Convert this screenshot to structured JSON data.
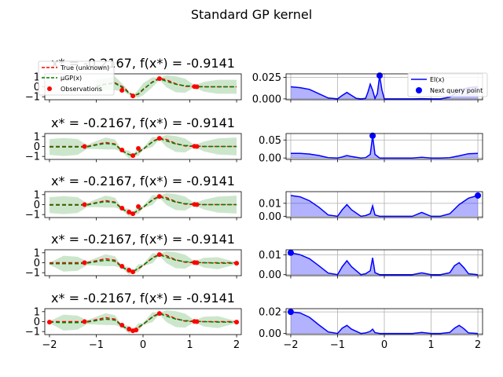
{
  "figure": {
    "title": "Standard GP kernel"
  },
  "chart_data": {
    "type": "line",
    "title": "Standard GP kernel",
    "colors": {
      "true": "#ff0000",
      "mean": "#008000",
      "band": "#008000",
      "observation": "#ff0000",
      "ei": "#0000ff",
      "ei_fill": "#0000ff",
      "next": "#0000ff"
    },
    "left_legend": {
      "entries": [
        "True (unknown)",
        "μGP(x)",
        "Observations"
      ],
      "placement": "upper-left"
    },
    "right_legend": {
      "entries": [
        "EI(x)",
        "Next query point"
      ],
      "placement": "upper-right"
    },
    "x_ticks": [
      -2,
      -1,
      0,
      1,
      2
    ],
    "xlim": [
      -2.1,
      2.1
    ],
    "rows": [
      {
        "title": "x* = -0.2167, f(x*) = -0.9141",
        "gp": {
          "ylim": [
            -1.3,
            1.3
          ],
          "y_ticks": [
            -1,
            0,
            1
          ],
          "x": [
            -1.0,
            -0.8,
            -0.6,
            -0.4,
            -0.3,
            -0.2,
            -0.1,
            0.0,
            0.2,
            0.35,
            0.5,
            0.7,
            0.9,
            1.1,
            1.3,
            1.6,
            2.0
          ],
          "true": [
            0.0,
            0.3,
            0.4,
            -0.1,
            -0.6,
            -0.85,
            -0.75,
            -0.3,
            0.5,
            0.85,
            0.7,
            0.3,
            0.05,
            0.0,
            0.0,
            0.0,
            0.0
          ],
          "mean": [
            0.05,
            0.25,
            0.35,
            -0.2,
            -0.65,
            -0.9,
            -0.7,
            -0.25,
            0.45,
            0.8,
            0.55,
            0.25,
            0.1,
            0.05,
            0.0,
            0.0,
            0.0
          ],
          "std": [
            0.35,
            0.3,
            0.35,
            0.15,
            0.08,
            0.05,
            0.2,
            0.3,
            0.25,
            0.05,
            0.3,
            0.4,
            0.35,
            0.05,
            0.25,
            0.35,
            0.35
          ],
          "observations": {
            "x": [
              -0.45,
              -0.2167,
              0.35,
              1.1,
              1.15
            ],
            "y": [
              -0.35,
              -0.9141,
              0.82,
              0.02,
              0.0
            ]
          }
        },
        "ei": {
          "ylim": [
            -0.001,
            0.029
          ],
          "y_ticks": [
            0.0,
            0.025
          ],
          "y_tick_labels": [
            "0.000",
            "0.025"
          ],
          "x": [
            -2.0,
            -1.8,
            -1.6,
            -1.4,
            -1.2,
            -1.0,
            -0.9,
            -0.8,
            -0.7,
            -0.6,
            -0.5,
            -0.4,
            -0.35,
            -0.3,
            -0.25,
            -0.2,
            -0.15,
            -0.1,
            -0.05,
            0.0,
            0.2,
            0.4,
            0.6,
            0.8,
            1.0,
            1.2,
            1.4,
            1.6,
            1.8,
            2.0
          ],
          "y": [
            0.014,
            0.013,
            0.011,
            0.006,
            0.001,
            0.0,
            0.004,
            0.0075,
            0.004,
            0.0005,
            0.0,
            0.0005,
            0.008,
            0.017,
            0.01,
            0.0005,
            0.006,
            0.027,
            0.01,
            0.0,
            0.0,
            0.0,
            0.0,
            0.0003,
            0.0,
            0.0,
            0.002,
            0.01,
            0.013,
            0.014
          ],
          "next": {
            "x": -0.1,
            "y": 0.027
          }
        }
      },
      {
        "title": "x* = -0.2167, f(x*) = -0.9141",
        "gp": {
          "ylim": [
            -1.3,
            1.3
          ],
          "y_ticks": [
            -1,
            0,
            1
          ],
          "x": [
            -2.0,
            -1.7,
            -1.4,
            -1.2,
            -1.0,
            -0.8,
            -0.6,
            -0.45,
            -0.3,
            -0.2167,
            -0.1,
            0.0,
            0.2,
            0.35,
            0.5,
            0.7,
            0.9,
            1.1,
            1.3,
            1.6,
            2.0
          ],
          "true": [
            0.0,
            0.0,
            0.0,
            0.0,
            0.2,
            0.4,
            0.25,
            -0.4,
            -0.8,
            -0.9141,
            -0.6,
            -0.3,
            0.5,
            0.85,
            0.7,
            0.3,
            0.05,
            0.0,
            0.0,
            0.0,
            0.0
          ],
          "mean": [
            -0.05,
            -0.05,
            -0.05,
            -0.05,
            0.15,
            0.3,
            0.2,
            -0.45,
            -0.8,
            -0.9,
            -0.55,
            -0.25,
            0.45,
            0.8,
            0.55,
            0.25,
            0.1,
            0.05,
            0.0,
            0.0,
            0.0
          ],
          "std": [
            0.4,
            0.45,
            0.4,
            0.1,
            0.2,
            0.3,
            0.25,
            0.05,
            0.2,
            0.05,
            0.2,
            0.05,
            0.25,
            0.05,
            0.3,
            0.4,
            0.35,
            0.05,
            0.25,
            0.4,
            0.45
          ],
          "observations": {
            "x": [
              -1.25,
              -0.45,
              -0.2167,
              -0.1,
              0.35,
              1.1,
              1.15
            ],
            "y": [
              0.0,
              -0.35,
              -0.9141,
              -0.2,
              0.82,
              0.02,
              0.0
            ]
          }
        },
        "ei": {
          "ylim": [
            -0.004,
            0.068
          ],
          "y_ticks": [
            0.0,
            0.05
          ],
          "y_tick_labels": [
            "0.00",
            "0.05"
          ],
          "x": [
            -2.0,
            -1.8,
            -1.6,
            -1.4,
            -1.2,
            -1.0,
            -0.9,
            -0.8,
            -0.7,
            -0.5,
            -0.4,
            -0.3,
            -0.25,
            -0.2,
            -0.1,
            0.0,
            0.4,
            0.6,
            0.8,
            1.0,
            1.2,
            1.4,
            1.6,
            1.8,
            2.0
          ],
          "y": [
            0.013,
            0.013,
            0.011,
            0.007,
            0.001,
            0.0,
            0.003,
            0.007,
            0.004,
            0.0,
            0.001,
            0.01,
            0.062,
            0.01,
            0.0,
            0.0,
            0.0,
            0.0,
            0.002,
            0.0,
            0.0,
            0.001,
            0.006,
            0.012,
            0.013
          ],
          "next": {
            "x": -0.25,
            "y": 0.062
          }
        }
      },
      {
        "title": "x* = -0.2167, f(x*) = -0.9141",
        "gp": {
          "ylim": [
            -1.3,
            1.3
          ],
          "y_ticks": [
            -1,
            0,
            1
          ],
          "x": [
            -2.0,
            -1.7,
            -1.4,
            -1.2,
            -1.0,
            -0.8,
            -0.6,
            -0.45,
            -0.3,
            -0.2167,
            -0.1,
            0.0,
            0.2,
            0.35,
            0.5,
            0.7,
            0.9,
            1.1,
            1.3,
            1.6,
            2.0
          ],
          "true": [
            0.0,
            0.0,
            0.0,
            0.0,
            0.2,
            0.4,
            0.25,
            -0.4,
            -0.8,
            -0.9141,
            -0.6,
            -0.3,
            0.5,
            0.85,
            0.7,
            0.3,
            0.05,
            0.0,
            0.0,
            0.0,
            0.0
          ],
          "mean": [
            -0.05,
            -0.05,
            -0.05,
            -0.05,
            0.15,
            0.3,
            0.2,
            -0.45,
            -0.8,
            -0.9,
            -0.55,
            -0.25,
            0.45,
            0.8,
            0.55,
            0.25,
            0.1,
            0.05,
            0.0,
            0.0,
            0.0
          ],
          "std": [
            0.4,
            0.45,
            0.4,
            0.1,
            0.2,
            0.3,
            0.25,
            0.05,
            0.2,
            0.05,
            0.2,
            0.05,
            0.25,
            0.05,
            0.3,
            0.4,
            0.35,
            0.05,
            0.25,
            0.4,
            0.45
          ],
          "observations": {
            "x": [
              -1.25,
              -0.45,
              -0.3,
              -0.2167,
              -0.1,
              0.35,
              1.1,
              1.15
            ],
            "y": [
              0.0,
              -0.35,
              -0.75,
              -0.9141,
              -0.2,
              0.82,
              0.02,
              0.0
            ]
          }
        },
        "ei": {
          "ylim": [
            -0.001,
            0.019
          ],
          "y_ticks": [
            0.0,
            0.01
          ],
          "y_tick_labels": [
            "0.00",
            "0.01"
          ],
          "x": [
            -2.0,
            -1.8,
            -1.6,
            -1.4,
            -1.2,
            -1.0,
            -0.9,
            -0.8,
            -0.7,
            -0.5,
            -0.4,
            -0.3,
            -0.25,
            -0.2,
            -0.1,
            0.0,
            0.4,
            0.6,
            0.8,
            1.0,
            1.2,
            1.4,
            1.6,
            1.8,
            2.0
          ],
          "y": [
            0.016,
            0.015,
            0.012,
            0.007,
            0.001,
            0.0,
            0.005,
            0.009,
            0.005,
            0.0,
            0.0005,
            0.002,
            0.008,
            0.001,
            0.0,
            0.0,
            0.0,
            0.0,
            0.003,
            0.0,
            0.0,
            0.002,
            0.009,
            0.014,
            0.016
          ],
          "next": {
            "x": 2.0,
            "y": 0.016
          }
        }
      },
      {
        "title": "x* = -0.2167, f(x*) = -0.9141",
        "gp": {
          "ylim": [
            -1.3,
            1.3
          ],
          "y_ticks": [
            -1,
            0,
            1
          ],
          "x": [
            -2.0,
            -1.7,
            -1.4,
            -1.2,
            -1.0,
            -0.8,
            -0.6,
            -0.45,
            -0.3,
            -0.2167,
            -0.1,
            0.0,
            0.2,
            0.35,
            0.5,
            0.7,
            0.9,
            1.1,
            1.3,
            1.6,
            2.0
          ],
          "true": [
            0.0,
            0.0,
            0.0,
            0.0,
            0.2,
            0.4,
            0.25,
            -0.4,
            -0.8,
            -0.9141,
            -0.6,
            -0.3,
            0.5,
            0.85,
            0.7,
            0.3,
            0.05,
            0.0,
            0.0,
            0.0,
            0.0
          ],
          "mean": [
            -0.1,
            -0.1,
            -0.1,
            -0.05,
            0.1,
            0.25,
            0.15,
            -0.45,
            -0.8,
            -0.9,
            -0.55,
            -0.25,
            0.45,
            0.8,
            0.55,
            0.25,
            0.1,
            0.05,
            0.0,
            -0.05,
            -0.05
          ],
          "std": [
            0.05,
            0.4,
            0.35,
            0.1,
            0.2,
            0.3,
            0.25,
            0.05,
            0.2,
            0.05,
            0.2,
            0.05,
            0.25,
            0.05,
            0.3,
            0.4,
            0.35,
            0.05,
            0.25,
            0.3,
            0.05
          ],
          "observations": {
            "x": [
              -1.25,
              -0.45,
              -0.3,
              -0.2167,
              0.35,
              1.1,
              1.15,
              2.0
            ],
            "y": [
              0.0,
              -0.35,
              -0.75,
              -0.9141,
              0.82,
              0.02,
              0.0,
              -0.05
            ]
          }
        },
        "ei": {
          "ylim": [
            -0.0005,
            0.0125
          ],
          "y_ticks": [
            0.0,
            0.01
          ],
          "y_tick_labels": [
            "0.00",
            "0.01"
          ],
          "x": [
            -2.0,
            -1.8,
            -1.6,
            -1.4,
            -1.2,
            -1.0,
            -0.9,
            -0.8,
            -0.7,
            -0.5,
            -0.4,
            -0.3,
            -0.25,
            -0.2,
            -0.1,
            0.0,
            0.4,
            0.6,
            0.8,
            1.0,
            1.2,
            1.4,
            1.5,
            1.6,
            1.7,
            1.8,
            2.0
          ],
          "y": [
            0.011,
            0.01,
            0.008,
            0.0045,
            0.0008,
            0.0,
            0.004,
            0.007,
            0.004,
            0.0,
            0.0005,
            0.002,
            0.0085,
            0.001,
            0.0,
            0.0,
            0.0,
            0.0,
            0.0009,
            0.0,
            0.0,
            0.001,
            0.0045,
            0.006,
            0.0035,
            0.0005,
            0.0
          ],
          "next": {
            "x": -2.0,
            "y": 0.011
          }
        }
      },
      {
        "title": "x* = -0.2167, f(x*) = -0.9141",
        "gp": {
          "ylim": [
            -1.3,
            1.3
          ],
          "y_ticks": [
            -1,
            0,
            1
          ],
          "x": [
            -2.0,
            -1.7,
            -1.4,
            -1.2,
            -1.0,
            -0.8,
            -0.6,
            -0.45,
            -0.3,
            -0.2167,
            -0.1,
            0.0,
            0.2,
            0.35,
            0.5,
            0.7,
            0.9,
            1.1,
            1.3,
            1.6,
            2.0
          ],
          "true": [
            0.0,
            0.0,
            0.0,
            0.0,
            0.2,
            0.4,
            0.25,
            -0.4,
            -0.8,
            -0.9141,
            -0.6,
            -0.3,
            0.5,
            0.85,
            0.7,
            0.3,
            0.05,
            0.0,
            0.0,
            0.0,
            0.0
          ],
          "mean": [
            -0.05,
            -0.1,
            -0.1,
            -0.05,
            0.1,
            0.25,
            0.15,
            -0.45,
            -0.8,
            -0.9,
            -0.55,
            -0.25,
            0.45,
            0.8,
            0.55,
            0.25,
            0.1,
            0.05,
            0.0,
            -0.05,
            -0.05
          ],
          "std": [
            0.05,
            0.4,
            0.35,
            0.1,
            0.2,
            0.3,
            0.25,
            0.05,
            0.2,
            0.05,
            0.2,
            0.05,
            0.25,
            0.05,
            0.3,
            0.4,
            0.35,
            0.05,
            0.25,
            0.3,
            0.05
          ],
          "observations": {
            "x": [
              -2.0,
              -1.25,
              -0.45,
              -0.3,
              -0.2167,
              -0.15,
              0.35,
              1.1,
              1.15,
              2.0
            ],
            "y": [
              -0.05,
              0.0,
              -0.35,
              -0.75,
              -0.9141,
              -0.85,
              0.82,
              0.02,
              0.0,
              -0.05
            ]
          }
        },
        "ei": {
          "ylim": [
            -0.001,
            0.023
          ],
          "y_ticks": [
            0.0,
            0.02
          ],
          "y_tick_labels": [
            "0.00",
            "0.02"
          ],
          "x": [
            -2.0,
            -1.8,
            -1.6,
            -1.4,
            -1.2,
            -1.0,
            -0.9,
            -0.8,
            -0.7,
            -0.5,
            -0.4,
            -0.3,
            -0.25,
            -0.2,
            -0.1,
            0.0,
            0.4,
            0.6,
            0.8,
            1.0,
            1.2,
            1.4,
            1.5,
            1.6,
            1.7,
            1.8,
            2.0
          ],
          "y": [
            0.02,
            0.019,
            0.015,
            0.008,
            0.0015,
            0.0,
            0.005,
            0.0075,
            0.004,
            0.0,
            0.0005,
            0.002,
            0.004,
            0.0008,
            0.0,
            0.0,
            0.0,
            0.0,
            0.001,
            0.0,
            0.0,
            0.001,
            0.005,
            0.0075,
            0.0045,
            0.0005,
            0.0
          ],
          "next": {
            "x": -2.0,
            "y": 0.02
          }
        }
      }
    ]
  }
}
